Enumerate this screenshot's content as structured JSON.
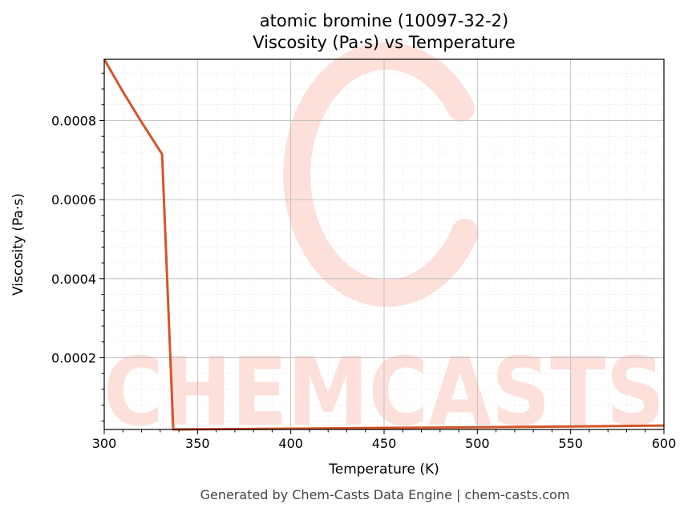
{
  "chart_data": {
    "type": "line",
    "title": "atomic bromine (10097-32-2)",
    "subtitle": "Viscosity (Pa·s) vs Temperature",
    "xlabel": "Temperature (K)",
    "ylabel": "Viscosity (Pa·s)",
    "xlim": [
      300,
      600
    ],
    "ylim": [
      1.85e-05,
      0.000955
    ],
    "x_ticks": [
      300,
      350,
      400,
      450,
      500,
      550,
      600
    ],
    "x_tick_labels": [
      "300",
      "350",
      "400",
      "450",
      "500",
      "550",
      "600"
    ],
    "y_ticks": [
      0.0002,
      0.0004,
      0.0006,
      0.0008
    ],
    "y_tick_labels": [
      "0.0002",
      "0.0004",
      "0.0006",
      "0.0008"
    ],
    "grid": true,
    "series": [
      {
        "color": "#d4552a",
        "x": [
          300,
          310,
          320,
          331,
          337,
          350,
          400,
          450,
          500,
          550,
          600
        ],
        "y": [
          0.000955,
          0.000873,
          0.000796,
          0.000715,
          1.85e-05,
          1.9e-05,
          2.05e-05,
          2.25e-05,
          2.4e-05,
          2.62e-05,
          2.85e-05
        ]
      }
    ]
  },
  "watermark": {
    "text": "CHEMCASTS",
    "color": "#fde0da"
  },
  "footer": "Generated by Chem-Casts Data Engine | chem-casts.com"
}
